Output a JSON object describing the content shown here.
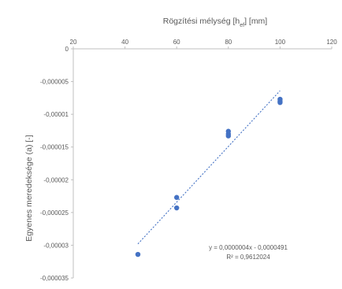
{
  "chart_data": {
    "type": "scatter",
    "title": "",
    "xlabel": "Rögzítési mélység [h",
    "xlabel_sub": "ef",
    "xlabel_tail": "] [mm]",
    "ylabel": "Egyenes meredeksége (a) [-]",
    "xlim": [
      20,
      120
    ],
    "ylim": [
      -3.5e-05,
      0
    ],
    "x_ticks": [
      20,
      40,
      60,
      80,
      100,
      120
    ],
    "x_tick_labels": [
      "20",
      "40",
      "60",
      "80",
      "100",
      "120"
    ],
    "y_ticks": [
      0,
      -5e-06,
      -1e-05,
      -1.5e-05,
      -2e-05,
      -2.5e-05,
      -3e-05,
      -3.5e-05
    ],
    "y_tick_labels": [
      "0",
      "-0,000005",
      "-0,00001",
      "-0,000015",
      "-0,00002",
      "-0,000025",
      "-0,00003",
      "-0,000035"
    ],
    "x_axis_position": "top",
    "grid": false,
    "legend": "none",
    "series": [
      {
        "color": "#4472c4",
        "points": [
          {
            "x": 45,
            "y": -3.14e-05
          },
          {
            "x": 60,
            "y": -2.27e-05
          },
          {
            "x": 60,
            "y": -2.43e-05
          },
          {
            "x": 80,
            "y": -1.26e-05
          },
          {
            "x": 80,
            "y": -1.3e-05
          },
          {
            "x": 80,
            "y": -1.33e-05
          },
          {
            "x": 100,
            "y": -7.7e-06
          },
          {
            "x": 100,
            "y": -8e-06
          },
          {
            "x": 100,
            "y": -8.2e-06
          }
        ]
      }
    ],
    "trendline": {
      "type": "linear",
      "color": "#4472c4",
      "style": "dotted",
      "x_range": [
        45,
        100
      ],
      "y_range": [
        -2.98e-05,
        -6.4e-06
      ],
      "equation": "y = 0,0000004x - 0,0000491",
      "r_squared": "R² = 0,9612024"
    }
  }
}
